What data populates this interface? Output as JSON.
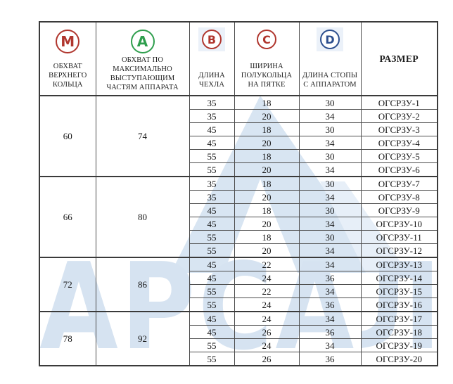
{
  "page": {
    "background": "#ffffff"
  },
  "watermark": {
    "text": "АРСАЛ",
    "text_color": "#d6e3f1",
    "shape_color": "#d8e5f2",
    "swoosh_color": "#e7eff8",
    "logo_shape": "triangle-letter-A"
  },
  "table": {
    "columns": [
      {
        "id": "m",
        "badge": "M",
        "badge_color": "#b0362e",
        "badge_size": "lg",
        "badge_bg": false,
        "label": "ОБХВАТ ВЕРХНЕГО КОЛЬЦА"
      },
      {
        "id": "a",
        "badge": "A",
        "badge_color": "#2e9e4d",
        "badge_size": "lg",
        "badge_bg": false,
        "label": "ОБХВАТ ПО МАКСИМАЛЬНО ВЫСТУПАЮЩИМ ЧАСТЯМ АППАРАТА"
      },
      {
        "id": "b",
        "badge": "B",
        "badge_color": "#b0362e",
        "badge_size": "sm",
        "badge_bg": true,
        "label": "ДЛИНА ЧЕХЛА"
      },
      {
        "id": "c",
        "badge": "C",
        "badge_color": "#b0362e",
        "badge_size": "sm",
        "badge_bg": false,
        "label": "ШИРИНА ПОЛУКОЛЬЦА НА ПЯТКЕ"
      },
      {
        "id": "d",
        "badge": "D",
        "badge_color": "#2d4f8e",
        "badge_size": "sm",
        "badge_bg": true,
        "label": "ДЛИНА СТОПЫ С АППАРАТОМ"
      },
      {
        "id": "size",
        "badge": null,
        "badge_color": null,
        "badge_size": null,
        "badge_bg": false,
        "label": "РАЗМЕР"
      }
    ],
    "groups": [
      {
        "m": "60",
        "a": "74",
        "rows": [
          [
            "35",
            "18",
            "30",
            "ОГСРЗУ-1"
          ],
          [
            "35",
            "20",
            "34",
            "ОГСРЗУ-2"
          ],
          [
            "45",
            "18",
            "30",
            "ОГСРЗУ-3"
          ],
          [
            "45",
            "20",
            "34",
            "ОГСРЗУ-4"
          ],
          [
            "55",
            "18",
            "30",
            "ОГСРЗУ-5"
          ],
          [
            "55",
            "20",
            "34",
            "ОГСРЗУ-6"
          ]
        ]
      },
      {
        "m": "66",
        "a": "80",
        "rows": [
          [
            "35",
            "18",
            "30",
            "ОГСРЗУ-7"
          ],
          [
            "35",
            "20",
            "34",
            "ОГСРЗУ-8"
          ],
          [
            "45",
            "18",
            "30",
            "ОГСРЗУ-9"
          ],
          [
            "45",
            "20",
            "34",
            "ОГСРЗУ-10"
          ],
          [
            "55",
            "18",
            "30",
            "ОГСРЗУ-11"
          ],
          [
            "55",
            "20",
            "34",
            "ОГСРЗУ-12"
          ]
        ]
      },
      {
        "m": "72",
        "a": "86",
        "rows": [
          [
            "45",
            "22",
            "34",
            "ОГСРЗУ-13"
          ],
          [
            "45",
            "24",
            "36",
            "ОГСРЗУ-14"
          ],
          [
            "55",
            "22",
            "34",
            "ОГСРЗУ-15"
          ],
          [
            "55",
            "24",
            "36",
            "ОГСРЗУ-16"
          ]
        ]
      },
      {
        "m": "78",
        "a": "92",
        "rows": [
          [
            "45",
            "24",
            "34",
            "ОГСРЗУ-17"
          ],
          [
            "45",
            "26",
            "36",
            "ОГСРЗУ-18"
          ],
          [
            "55",
            "24",
            "34",
            "ОГСРЗУ-19"
          ],
          [
            "55",
            "26",
            "36",
            "ОГСРЗУ-20"
          ]
        ]
      }
    ]
  }
}
